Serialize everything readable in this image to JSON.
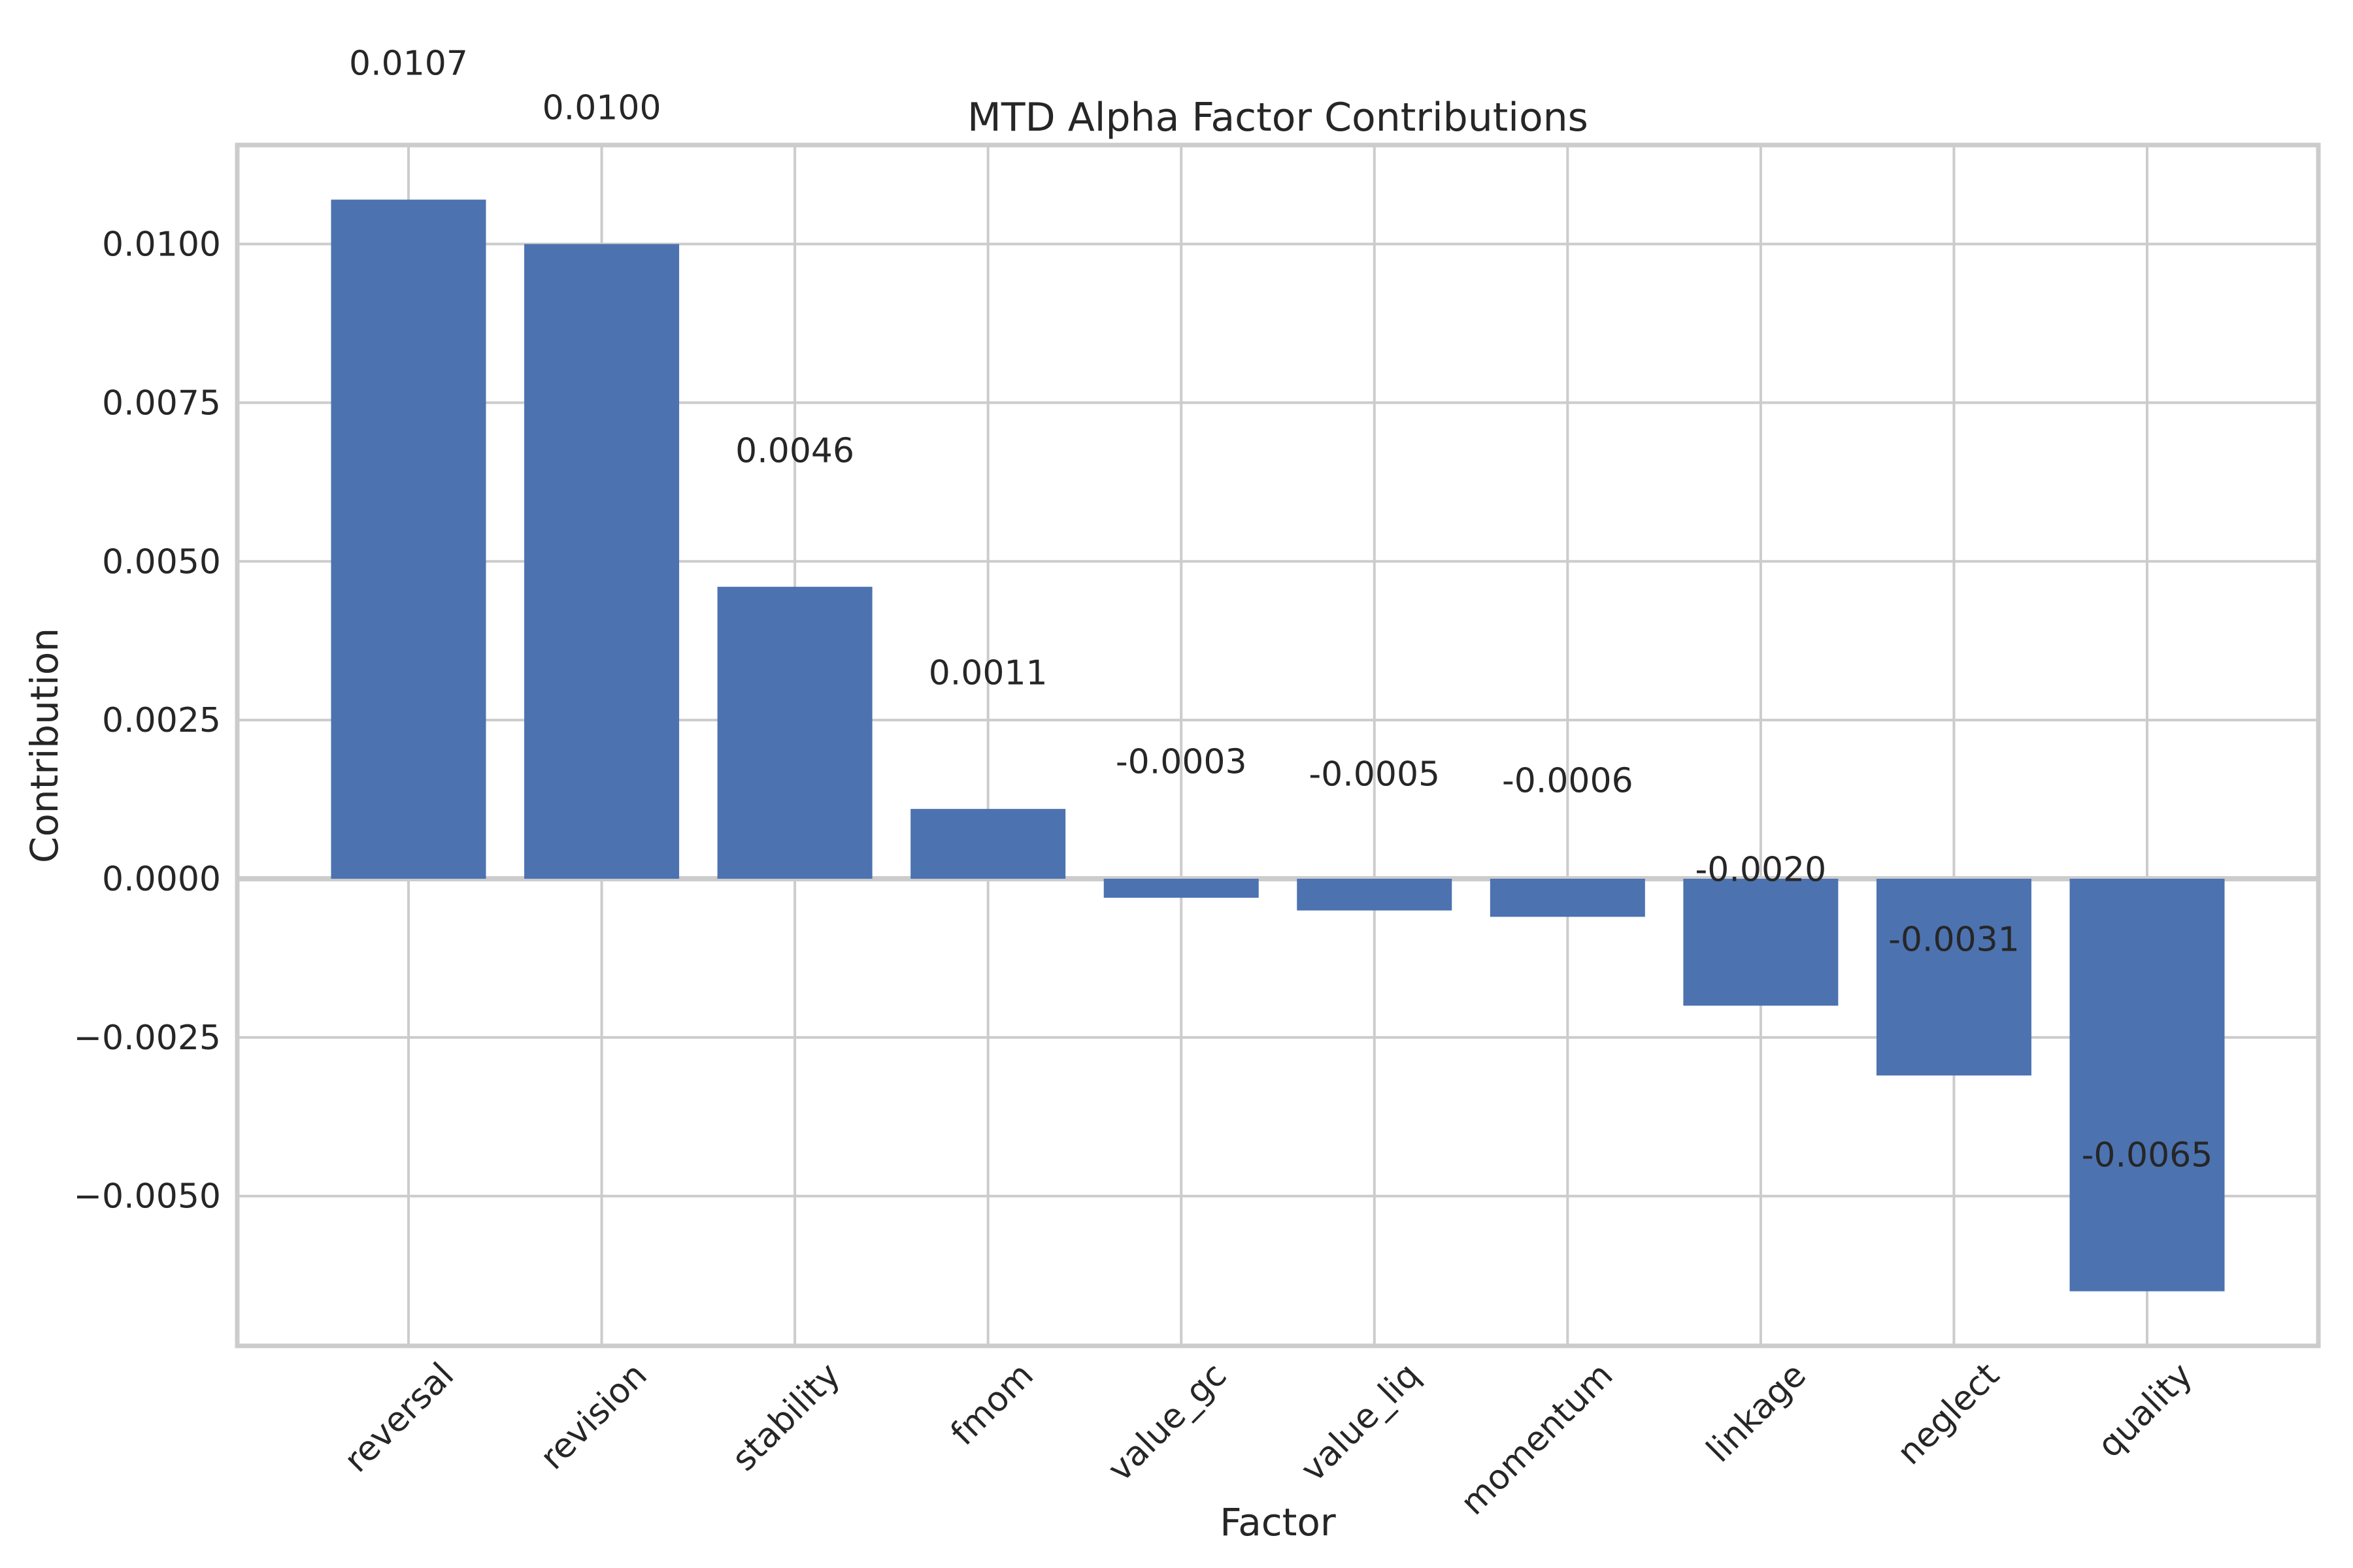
{
  "chart_data": {
    "type": "bar",
    "title": "MTD Alpha Factor Contributions",
    "xlabel": "Factor",
    "ylabel": "Contribution",
    "categories": [
      "reversal",
      "revision",
      "stability",
      "fmom",
      "value_gc",
      "value_liq",
      "momentum",
      "linkage",
      "neglect",
      "quality"
    ],
    "values": [
      0.0107,
      0.01,
      0.0046,
      0.0011,
      -0.0003,
      -0.0005,
      -0.0006,
      -0.002,
      -0.0031,
      -0.0065
    ],
    "bar_value_labels": [
      "0.0107",
      "0.0100",
      "0.0046",
      "0.0011",
      "-0.0003",
      "-0.0005",
      "-0.0006",
      "-0.0020",
      "-0.0031",
      "-0.0065"
    ],
    "yticks": [
      0.01,
      0.0075,
      0.005,
      0.0025,
      0.0,
      -0.0025,
      -0.005
    ],
    "ytick_labels": [
      "0.0100",
      "0.0075",
      "0.0050",
      "0.0025",
      "0.0000",
      "−0.0025",
      "−0.0050"
    ],
    "ylim": [
      -0.00736,
      0.01156
    ],
    "grid": true,
    "legend": false,
    "x_tick_rotation_deg": 45,
    "value_label_offset": 0.00215,
    "bar_color": "#4C72B0"
  },
  "style": {
    "background": "#ffffff",
    "text_color": "#262626",
    "grid_color": "#cccccc",
    "spine_color": "#cccccc",
    "zero_line_color": "#cccccc"
  }
}
